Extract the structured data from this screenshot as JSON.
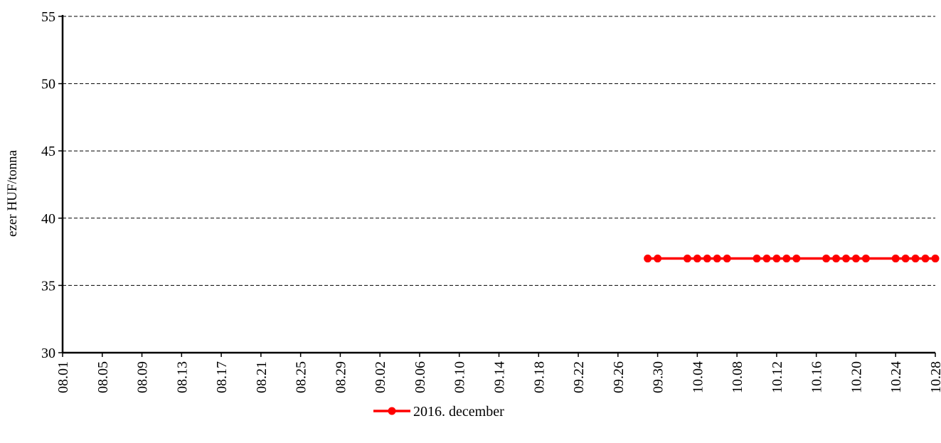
{
  "chart_data": {
    "type": "line",
    "title": "",
    "xlabel": "",
    "ylabel": "ezer HUF/tonna",
    "ylim": [
      30,
      55
    ],
    "yticks": [
      30,
      35,
      40,
      45,
      50,
      55
    ],
    "grid": "horizontal dashed",
    "legend_position": "bottom-center",
    "categories": [
      "08.01",
      "08.05",
      "08.09",
      "08.13",
      "08.17",
      "08.21",
      "08.25",
      "08.29",
      "09.02",
      "09.06",
      "09.10",
      "09.14",
      "09.18",
      "09.22",
      "09.26",
      "09.30",
      "10.04",
      "10.08",
      "10.12",
      "10.16",
      "10.20",
      "10.24",
      "10.28"
    ],
    "series": [
      {
        "name": "2016. december",
        "color": "#ff0000",
        "marker": "circle",
        "points": [
          {
            "x": "09.29",
            "y": 37
          },
          {
            "x": "09.30",
            "y": 37
          },
          {
            "x": "10.03",
            "y": 37
          },
          {
            "x": "10.04",
            "y": 37
          },
          {
            "x": "10.05",
            "y": 37
          },
          {
            "x": "10.06",
            "y": 37
          },
          {
            "x": "10.07",
            "y": 37
          },
          {
            "x": "10.10",
            "y": 37
          },
          {
            "x": "10.11",
            "y": 37
          },
          {
            "x": "10.12",
            "y": 37
          },
          {
            "x": "10.13",
            "y": 37
          },
          {
            "x": "10.14",
            "y": 37
          },
          {
            "x": "10.17",
            "y": 37
          },
          {
            "x": "10.18",
            "y": 37
          },
          {
            "x": "10.19",
            "y": 37
          },
          {
            "x": "10.20",
            "y": 37
          },
          {
            "x": "10.21",
            "y": 37
          },
          {
            "x": "10.24",
            "y": 37
          },
          {
            "x": "10.25",
            "y": 37
          },
          {
            "x": "10.26",
            "y": 37
          },
          {
            "x": "10.27",
            "y": 37
          },
          {
            "x": "10.28",
            "y": 37
          }
        ]
      }
    ]
  }
}
